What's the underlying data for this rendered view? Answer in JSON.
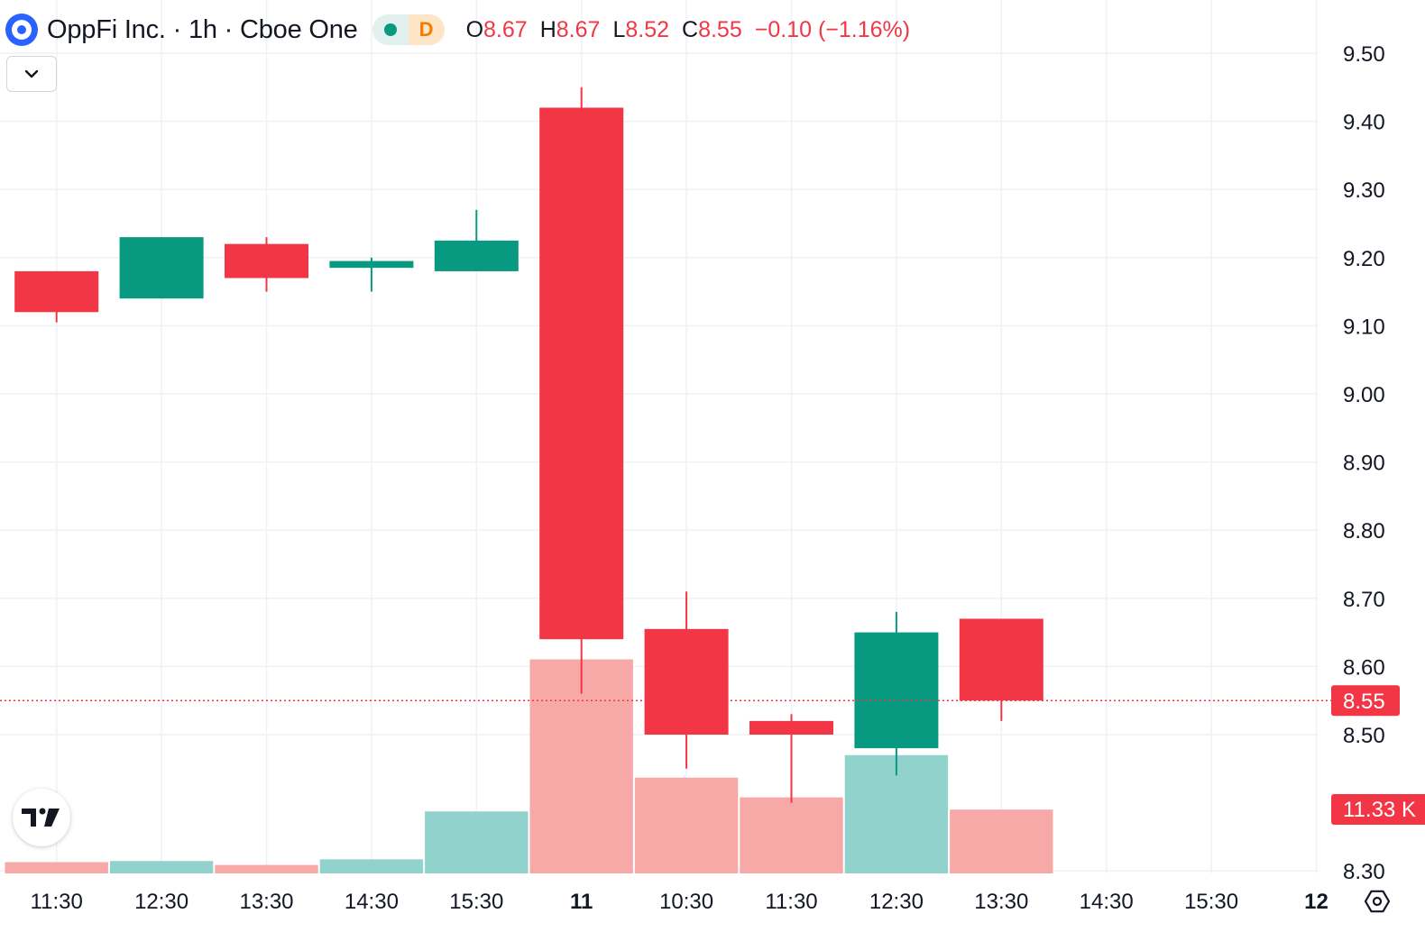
{
  "header": {
    "symbol_title": "OppFi Inc. · 1h · Cboe One",
    "badge_d": "D",
    "ohlc": [
      {
        "key": "O",
        "value": "8.67"
      },
      {
        "key": "H",
        "value": "8.67"
      },
      {
        "key": "L",
        "value": "8.52"
      },
      {
        "key": "C",
        "value": "8.55"
      }
    ],
    "change": "−0.10 (−1.16%)"
  },
  "colors": {
    "up": "#089981",
    "down": "#f23645",
    "up_volume": "#92d2cc",
    "down_volume": "#f7a9a7",
    "grid": "#f0f1f4",
    "text": "#131722"
  },
  "icons": {
    "collapse": "chevron-down-icon",
    "logo": "tradingview-logo-icon",
    "settings": "gear-icon",
    "symbol": "symbol-logo-icon"
  },
  "chart_data": {
    "type": "candlestick",
    "y_range": [
      8.28,
      9.53
    ],
    "y_ticks": [
      "9.50",
      "9.40",
      "9.30",
      "9.20",
      "9.10",
      "9.00",
      "8.90",
      "8.80",
      "8.70",
      "8.60",
      "8.50",
      "8.30"
    ],
    "x_labels": [
      "11:30",
      "12:30",
      "13:30",
      "14:30",
      "15:30",
      "11",
      "10:30",
      "11:30",
      "12:30",
      "13:30",
      "14:30",
      "15:30",
      "12"
    ],
    "bold_x_labels": [
      "11",
      "12"
    ],
    "candles": [
      {
        "time": "11:30",
        "open": 9.18,
        "high": 9.18,
        "low": 9.105,
        "close": 9.12
      },
      {
        "time": "12:30",
        "open": 9.14,
        "high": 9.23,
        "low": 9.14,
        "close": 9.23
      },
      {
        "time": "13:30",
        "open": 9.22,
        "high": 9.23,
        "low": 9.15,
        "close": 9.17
      },
      {
        "time": "14:30",
        "open": 9.185,
        "high": 9.2,
        "low": 9.15,
        "close": 9.195
      },
      {
        "time": "15:30",
        "open": 9.18,
        "high": 9.27,
        "low": 9.18,
        "close": 9.225
      },
      {
        "time": "11",
        "open": 9.42,
        "high": 9.45,
        "low": 8.56,
        "close": 8.64
      },
      {
        "time": "10:30",
        "open": 8.655,
        "high": 8.71,
        "low": 8.45,
        "close": 8.5
      },
      {
        "time": "11:30",
        "open": 8.52,
        "high": 8.53,
        "low": 8.4,
        "close": 8.5
      },
      {
        "time": "12:30",
        "open": 8.48,
        "high": 8.68,
        "low": 8.44,
        "close": 8.65
      },
      {
        "time": "13:30",
        "open": 8.67,
        "high": 8.67,
        "low": 8.52,
        "close": 8.55
      }
    ],
    "volume": {
      "unit": "K",
      "max": 40,
      "bars": [
        {
          "time": "11:30",
          "value": 2,
          "direction": "down"
        },
        {
          "time": "12:30",
          "value": 2.2,
          "direction": "up"
        },
        {
          "time": "13:30",
          "value": 1.5,
          "direction": "down"
        },
        {
          "time": "14:30",
          "value": 2.5,
          "direction": "up"
        },
        {
          "time": "15:30",
          "value": 11,
          "direction": "up"
        },
        {
          "time": "11",
          "value": 38,
          "direction": "down"
        },
        {
          "time": "10:30",
          "value": 17,
          "direction": "down"
        },
        {
          "time": "11:30",
          "value": 13.5,
          "direction": "down"
        },
        {
          "time": "12:30",
          "value": 21,
          "direction": "up"
        },
        {
          "time": "13:30",
          "value": 11.33,
          "direction": "down"
        }
      ]
    },
    "last_price": 8.55,
    "last_price_label": "8.55",
    "last_volume_label": "11.33 K",
    "grid": true
  }
}
